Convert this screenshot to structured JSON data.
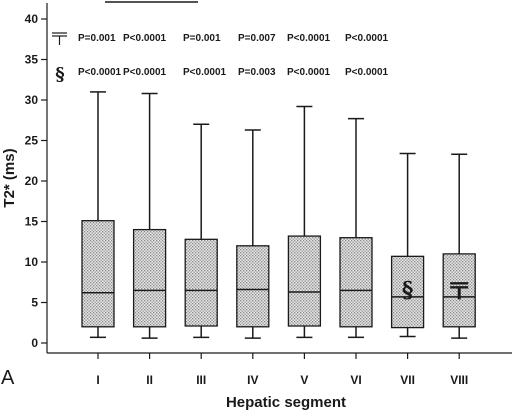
{
  "chart_data": {
    "type": "box",
    "panel_label": "A",
    "xlabel": "Hepatic segment",
    "ylabel": "T2* (ms)",
    "ylim": [
      0,
      40
    ],
    "yticks": [
      0,
      5,
      10,
      15,
      20,
      25,
      30,
      35,
      40
    ],
    "categories": [
      "I",
      "II",
      "III",
      "IV",
      "V",
      "VI",
      "VII",
      "VIII"
    ],
    "boxes": [
      {
        "min": 0.7,
        "q1": 2.0,
        "median": 6.2,
        "q3": 15.1,
        "max": 31.0
      },
      {
        "min": 0.6,
        "q1": 2.0,
        "median": 6.5,
        "q3": 14.0,
        "max": 30.8
      },
      {
        "min": 0.7,
        "q1": 2.1,
        "median": 6.5,
        "q3": 12.8,
        "max": 27.0
      },
      {
        "min": 0.6,
        "q1": 2.0,
        "median": 6.6,
        "q3": 12.0,
        "max": 26.3
      },
      {
        "min": 0.7,
        "q1": 2.1,
        "median": 6.3,
        "q3": 13.2,
        "max": 29.2
      },
      {
        "min": 0.7,
        "q1": 2.0,
        "median": 6.5,
        "q3": 13.0,
        "max": 27.7
      },
      {
        "min": 0.8,
        "q1": 1.9,
        "median": 5.7,
        "q3": 10.7,
        "max": 23.4
      },
      {
        "min": 0.6,
        "q1": 2.0,
        "median": 5.7,
        "q3": 11.0,
        "max": 23.3
      }
    ],
    "box_markers": [
      {
        "category": "VII",
        "symbol": "§"
      },
      {
        "category": "VIII",
        "symbol": "⊤"
      }
    ],
    "annotation_rows": [
      {
        "symbol": "⊤",
        "values": [
          "P=0.001",
          "P<0.0001",
          "P=0.001",
          "P=0.007",
          "P<0.0001",
          "P<0.0001"
        ]
      },
      {
        "symbol": "§",
        "values": [
          "P<0.0001",
          "P<0.0001",
          "P<0.0001",
          "P=0.003",
          "P<0.0001",
          "P<0.0001"
        ]
      }
    ],
    "colors": {
      "box_fill": "#cccccc",
      "stroke": "#1a1a1a"
    }
  }
}
